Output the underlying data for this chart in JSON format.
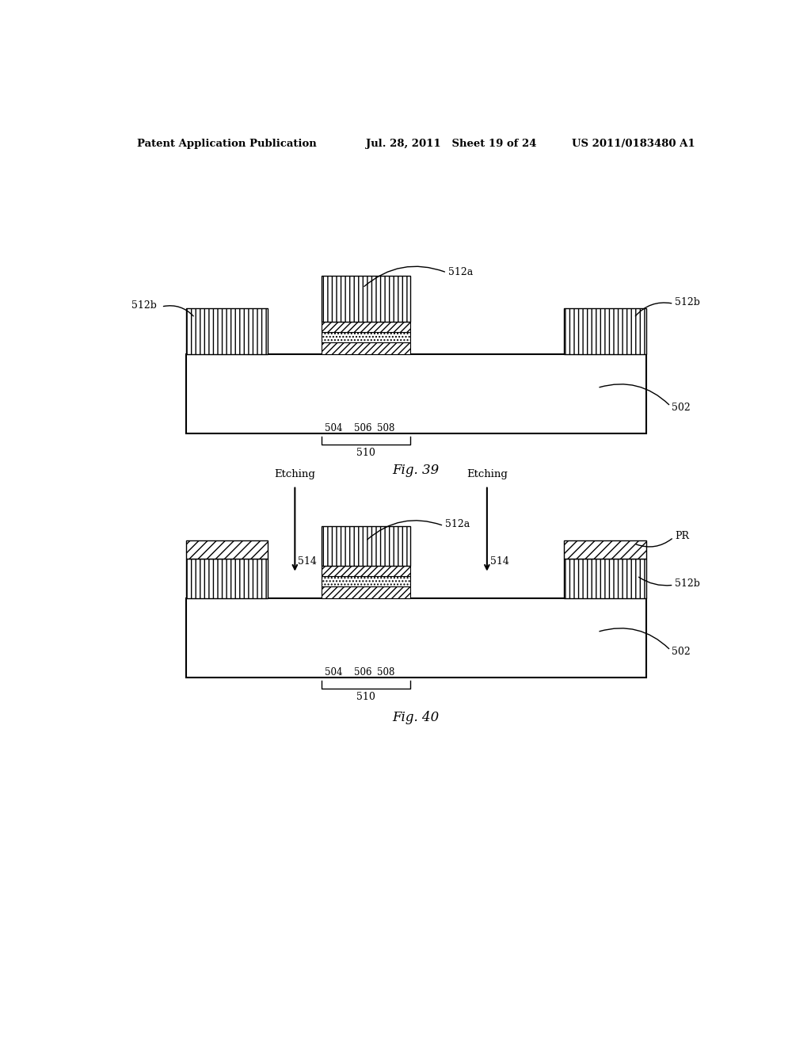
{
  "bg_color": "#ffffff",
  "header_left": "Patent Application Publication",
  "header_mid": "Jul. 28, 2011   Sheet 19 of 24",
  "header_right": "US 2011/0183480 A1",
  "fig39_label": "Fig. 39",
  "fig40_label": "Fig. 40"
}
